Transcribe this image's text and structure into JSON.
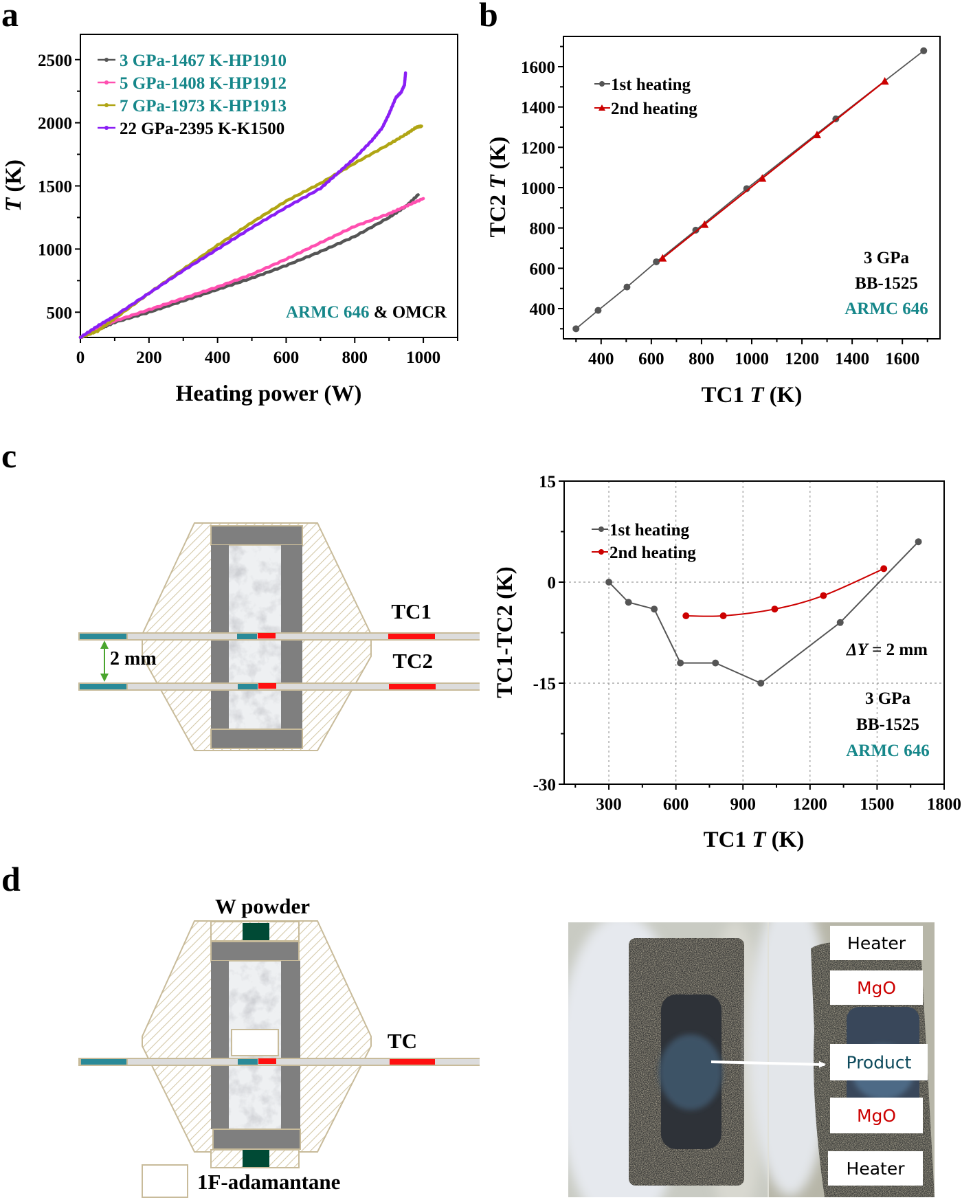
{
  "colors": {
    "teal": "#16878a",
    "black": "#000000",
    "gray_series": "#555555",
    "pink_series": "#ff4fb0",
    "olive_series": "#b0a514",
    "purple_series": "#8a1ef5",
    "red_series": "#cc0000",
    "hatch": "#c8bb9a",
    "heater_gray": "#7f7f7f",
    "tc_teal": "#2a8a98",
    "tc_red": "#ff1010",
    "w_powder": "#004a35",
    "dim_arrow": "#4aa52e"
  },
  "panels": {
    "a": "a",
    "b": "b",
    "c": "c",
    "d": "d"
  },
  "chart_data": [
    {
      "id": "a",
      "type": "line",
      "title": "",
      "xlabel": "Heating power (W)",
      "ylabel_italic": "T",
      "ylabel_rest": " (K)",
      "xlim": [
        0,
        1100
      ],
      "ylim": [
        300,
        2700
      ],
      "xticks": [
        0,
        200,
        400,
        600,
        800,
        1000
      ],
      "yticks": [
        500,
        1000,
        1500,
        2000,
        2500
      ],
      "grid": false,
      "legend_position": "top-left",
      "annotation": {
        "teal_part": "ARMC 646",
        "black_part": " & OMCR"
      },
      "series": [
        {
          "name": "3 GPa-1467 K-HP1910",
          "label_color": "teal",
          "color": "gray_series",
          "x": [
            0,
            50,
            100,
            200,
            300,
            400,
            500,
            600,
            700,
            800,
            900,
            950,
            985
          ],
          "y": [
            300,
            360,
            420,
            500,
            590,
            680,
            770,
            870,
            980,
            1100,
            1250,
            1340,
            1430
          ]
        },
        {
          "name": "5 GPa-1408 K-HP1912",
          "label_color": "teal",
          "color": "pink_series",
          "x": [
            0,
            50,
            100,
            200,
            300,
            400,
            500,
            600,
            700,
            800,
            900,
            950,
            1000
          ],
          "y": [
            300,
            370,
            430,
            520,
            610,
            700,
            800,
            920,
            1050,
            1180,
            1280,
            1340,
            1400
          ]
        },
        {
          "name": "7 GPa-1973 K-HP1913",
          "label_color": "teal",
          "color": "olive_series",
          "x": [
            0,
            50,
            100,
            200,
            300,
            400,
            500,
            600,
            700,
            800,
            900,
            950,
            980,
            995
          ],
          "y": [
            300,
            350,
            450,
            650,
            840,
            1030,
            1210,
            1380,
            1520,
            1680,
            1830,
            1910,
            1965,
            1973
          ]
        },
        {
          "name": "22 GPa-2395 K-K1500",
          "label_color": "black",
          "color": "purple_series",
          "x": [
            0,
            50,
            100,
            200,
            300,
            400,
            500,
            600,
            700,
            750,
            800,
            850,
            880,
            900,
            920,
            935,
            945,
            948
          ],
          "y": [
            300,
            390,
            470,
            650,
            830,
            1000,
            1170,
            1330,
            1480,
            1600,
            1720,
            1860,
            1960,
            2070,
            2200,
            2240,
            2300,
            2395
          ]
        }
      ]
    },
    {
      "id": "b",
      "type": "line",
      "xlabel_pre": "TC1 ",
      "xlabel_italic": "T",
      "xlabel_post": " (K)",
      "ylabel_pre": "TC2 ",
      "ylabel_italic": "T",
      "ylabel_post": " (K)",
      "xlim": [
        250,
        1750
      ],
      "ylim": [
        250,
        1750
      ],
      "xticks": [
        400,
        600,
        800,
        1000,
        1200,
        1400,
        1600
      ],
      "yticks": [
        400,
        600,
        800,
        1000,
        1200,
        1400,
        1600
      ],
      "grid": false,
      "legend_position": "top-left",
      "annotations": [
        "3 GPa",
        "BB-1525",
        "ARMC 646"
      ],
      "series": [
        {
          "name": "1st heating",
          "marker": "circle",
          "color": "gray_series",
          "x": [
            300,
            388,
            503,
            620,
            777,
            980,
            1335,
            1685
          ],
          "y": [
            300,
            391,
            507,
            632,
            789,
            995,
            1341,
            1679
          ]
        },
        {
          "name": "2nd heating",
          "marker": "triangle",
          "color": "red_series",
          "x": [
            645,
            812,
            1042,
            1260,
            1530
          ],
          "y": [
            650,
            817,
            1046,
            1262,
            1528
          ]
        }
      ]
    },
    {
      "id": "c",
      "type": "line",
      "xlabel_pre": "TC1 ",
      "xlabel_italic": "T",
      "xlabel_post": " (K)",
      "ylabel": "TC1-TC2 (K)",
      "xlim": [
        100,
        1800
      ],
      "ylim": [
        -30,
        15
      ],
      "xticks": [
        300,
        600,
        900,
        1200,
        1500,
        1800
      ],
      "yticks": [
        15,
        0,
        -15,
        -30
      ],
      "grid": true,
      "legend_position": "top-left",
      "annotations": {
        "delta_italic": "ΔY",
        "delta_rest": " = 2 mm",
        "lines": [
          "3 GPa",
          "BB-1525",
          "ARMC 646"
        ]
      },
      "series": [
        {
          "name": "1st heating",
          "marker": "circle",
          "color": "gray_series",
          "x": [
            300,
            388,
            503,
            620,
            777,
            980,
            1335,
            1685
          ],
          "y": [
            0,
            -3,
            -4,
            -12,
            -12,
            -15,
            -6,
            6
          ]
        },
        {
          "name": "2nd heating",
          "marker": "circle",
          "color": "red_series",
          "x": [
            645,
            812,
            1042,
            1260,
            1530
          ],
          "y": [
            -5,
            -5,
            -4,
            -2,
            2
          ]
        }
      ]
    }
  ],
  "diagram_c": {
    "tc1_label": "TC1",
    "tc2_label": "TC2",
    "spacing_label": "2 mm"
  },
  "diagram_d": {
    "w_powder_label": "W powder",
    "tc_label": "TC",
    "legend_label": "1F-adamantane"
  },
  "photo_d": {
    "labels": [
      {
        "text": "Heater",
        "color": "#000000"
      },
      {
        "text": "MgO",
        "color": "#cc0000"
      },
      {
        "text": "Product",
        "color": "#0d4a5c"
      },
      {
        "text": "MgO",
        "color": "#cc0000"
      },
      {
        "text": "Heater",
        "color": "#000000"
      }
    ]
  }
}
